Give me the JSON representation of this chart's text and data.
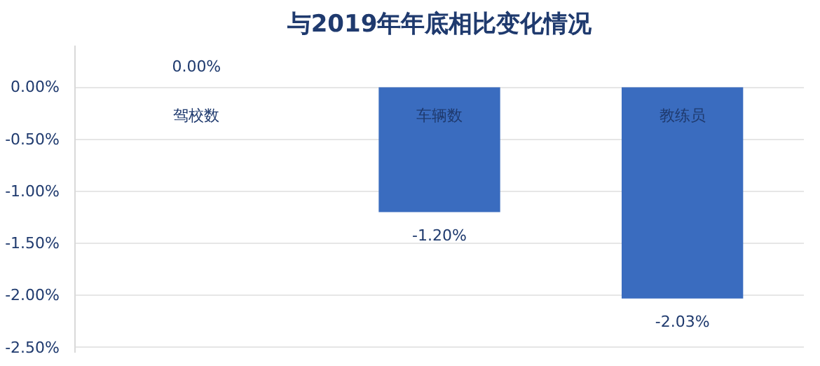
{
  "chart_data": {
    "type": "bar",
    "title": "与2019年年底相比变化情况",
    "categories": [
      "驾校数",
      "车辆数",
      "教练员"
    ],
    "values": [
      0.0,
      -1.2,
      -2.03
    ],
    "value_labels": [
      "0.00%",
      "-1.20%",
      "-2.03%"
    ],
    "color": "#3a6cbf",
    "ylim": [
      -2.55,
      0.4
    ],
    "yticks": [
      {
        "value": 0,
        "label": "0.00%"
      },
      {
        "value": -0.5,
        "label": "-0.50%"
      },
      {
        "value": -1,
        "label": "-1.00%"
      },
      {
        "value": -1.5,
        "label": "-1.50%"
      },
      {
        "value": -2,
        "label": "-2.00%"
      },
      {
        "value": -2.5,
        "label": "-2.50%"
      }
    ],
    "grid": "y"
  }
}
